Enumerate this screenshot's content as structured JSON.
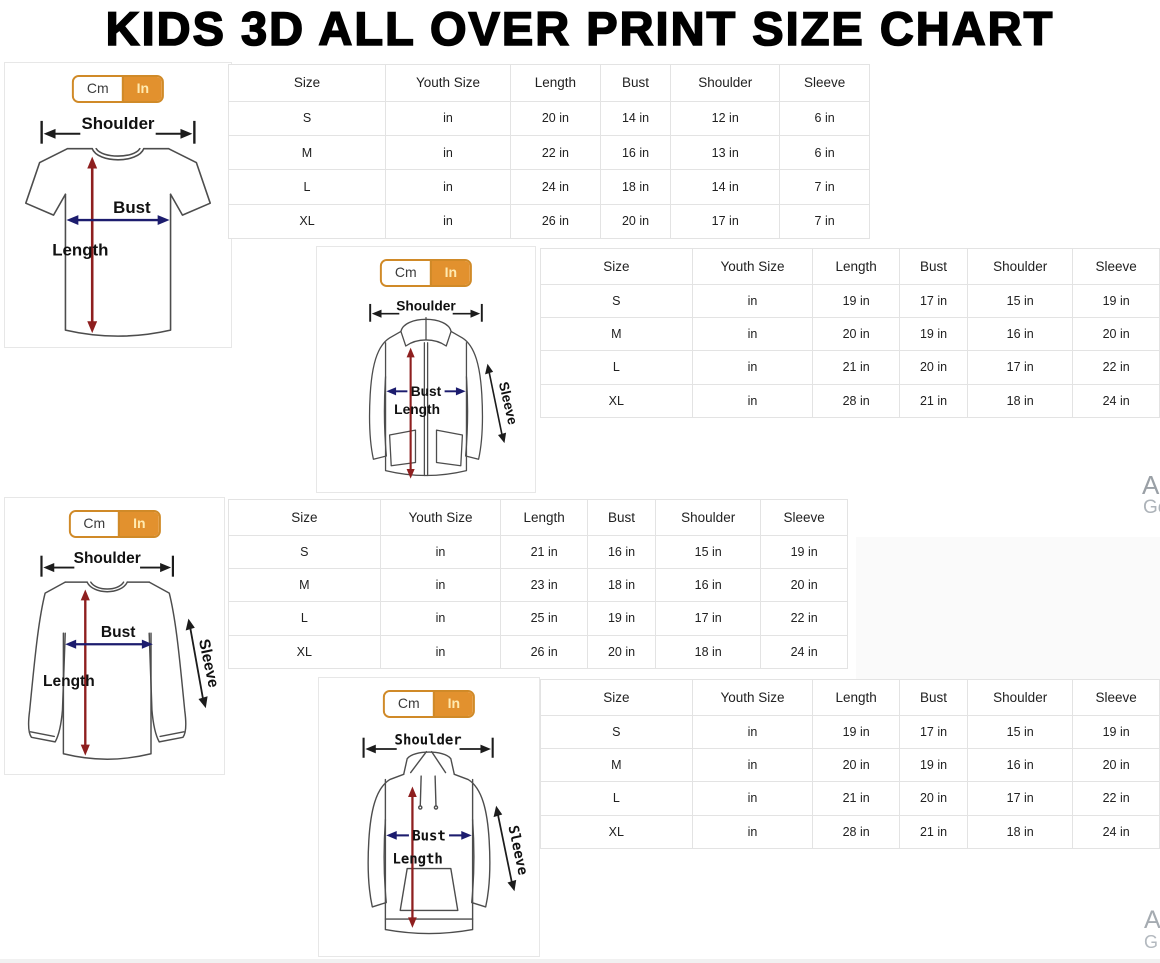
{
  "title": "KIDS 3D ALL OVER PRINT SIZE CHART",
  "unit_toggle": {
    "cm_label": "Cm",
    "in_label": "In",
    "selected": "In"
  },
  "diagram_labels": {
    "shoulder": "Shoulder",
    "bust": "Bust",
    "length": "Length",
    "sleeve": "Sleeve"
  },
  "table_headers": [
    "Size",
    "Youth Size",
    "Length",
    "Bust",
    "Shoulder",
    "Sleeve"
  ],
  "sections": [
    {
      "garment": "t-shirt",
      "rows": [
        [
          "S",
          "in",
          "20 in",
          "14 in",
          "12 in",
          "6 in"
        ],
        [
          "M",
          "in",
          "22 in",
          "16 in",
          "13 in",
          "6 in"
        ],
        [
          "L",
          "in",
          "24 in",
          "18 in",
          "14 in",
          "7 in"
        ],
        [
          "XL",
          "in",
          "26 in",
          "20 in",
          "17 in",
          "7 in"
        ]
      ]
    },
    {
      "garment": "zip-up-hoodie",
      "rows": [
        [
          "S",
          "in",
          "19 in",
          "17 in",
          "15 in",
          "19 in"
        ],
        [
          "M",
          "in",
          "20 in",
          "19 in",
          "16 in",
          "20 in"
        ],
        [
          "L",
          "in",
          "21 in",
          "20 in",
          "17 in",
          "22 in"
        ],
        [
          "XL",
          "in",
          "28 in",
          "21 in",
          "18 in",
          "24 in"
        ]
      ]
    },
    {
      "garment": "long-sleeve-shirt",
      "rows": [
        [
          "S",
          "in",
          "21 in",
          "16 in",
          "15 in",
          "19 in"
        ],
        [
          "M",
          "in",
          "23 in",
          "18 in",
          "16 in",
          "20 in"
        ],
        [
          "L",
          "in",
          "25 in",
          "19 in",
          "17 in",
          "22 in"
        ],
        [
          "XL",
          "in",
          "26 in",
          "20 in",
          "18 in",
          "24 in"
        ]
      ]
    },
    {
      "garment": "pullover-hoodie",
      "rows": [
        [
          "S",
          "in",
          "19 in",
          "17 in",
          "15 in",
          "19 in"
        ],
        [
          "M",
          "in",
          "20 in",
          "19 in",
          "16 in",
          "20 in"
        ],
        [
          "L",
          "in",
          "21 in",
          "20 in",
          "17 in",
          "22 in"
        ],
        [
          "XL",
          "in",
          "28 in",
          "21 in",
          "18 in",
          "24 in"
        ]
      ]
    }
  ],
  "edge_fragments": {
    "upper": [
      "A",
      "Ge"
    ],
    "lower": [
      "A",
      "G"
    ]
  },
  "colors": {
    "accent_orange": "#e2912e",
    "toggle_border": "#d08a28",
    "toggle_in_text": "#ffeab0",
    "bust_arrow": "#1c1c6e",
    "length_arrow": "#8e1f1f",
    "arrow_black": "#1c1c1c",
    "table_border": "#e3e3e3",
    "table_text": "#212121"
  }
}
